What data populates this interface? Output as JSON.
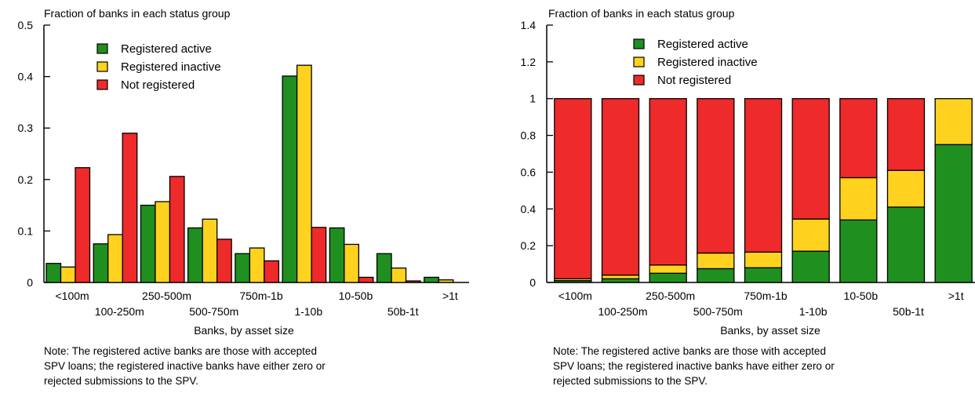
{
  "chart_data": [
    {
      "type": "bar",
      "subtype": "grouped",
      "title": "Fraction of banks in each status group",
      "xlabel": "Banks, by asset size",
      "ylabel": "",
      "ylim": [
        0,
        0.5
      ],
      "yticks": [
        "0",
        "0.1",
        "0.2",
        "0.3",
        "0.4",
        "0.5"
      ],
      "yticks_values": [
        0,
        0.1,
        0.2,
        0.3,
        0.4,
        0.5
      ],
      "categories": [
        "<100m",
        "100-250m",
        "250-500m",
        "500-750m",
        "750m-1b",
        "1-10b",
        "10-50b",
        "50b-1t",
        ">1t"
      ],
      "legend_placement": "top-left",
      "series": [
        {
          "name": "Registered active",
          "color": "#1f8f1f",
          "values": [
            0.037,
            0.075,
            0.15,
            0.106,
            0.056,
            0.401,
            0.106,
            0.056,
            0.01
          ]
        },
        {
          "name": "Registered inactive",
          "color": "#ffd21f",
          "values": [
            0.03,
            0.093,
            0.157,
            0.123,
            0.067,
            0.422,
            0.074,
            0.028,
            0.005
          ]
        },
        {
          "name": "Not registered",
          "color": "#ee2a2a",
          "values": [
            0.223,
            0.29,
            0.206,
            0.084,
            0.042,
            0.107,
            0.01,
            0.003,
            0.0
          ]
        }
      ],
      "note": "Note: The registered active banks are those with accepted\nSPV loans; the registered inactive banks have either zero or\nrejected submissions to the SPV."
    },
    {
      "type": "bar",
      "subtype": "stacked",
      "title": "Fraction of banks in each status group",
      "xlabel": "Banks, by asset size",
      "ylabel": "",
      "ylim": [
        0,
        1.4
      ],
      "yticks": [
        "0",
        "0.2",
        "0.4",
        "0.6",
        "0.8",
        "1",
        "1.2",
        "1.4"
      ],
      "yticks_values": [
        0,
        0.2,
        0.4,
        0.6,
        0.8,
        1.0,
        1.2,
        1.4
      ],
      "categories": [
        "<100m",
        "100-250m",
        "250-500m",
        "500-750m",
        "750m-1b",
        "1-10b",
        "10-50b",
        "50b-1t",
        ">1t"
      ],
      "legend_placement": "top-center",
      "series": [
        {
          "name": "Registered active",
          "color": "#1f8f1f",
          "values": [
            0.01,
            0.02,
            0.05,
            0.075,
            0.08,
            0.17,
            0.34,
            0.41,
            0.75
          ]
        },
        {
          "name": "Registered inactive",
          "color": "#ffd21f",
          "values": [
            0.01,
            0.02,
            0.045,
            0.085,
            0.085,
            0.175,
            0.23,
            0.2,
            0.25
          ]
        },
        {
          "name": "Not registered",
          "color": "#ee2a2a",
          "values": [
            0.98,
            0.96,
            0.905,
            0.84,
            0.835,
            0.655,
            0.43,
            0.39,
            0.0
          ]
        }
      ],
      "note": "Note: The registered active banks are those with accepted\nSPV loans; the registered inactive banks have either zero or\nrejected submissions to the SPV."
    }
  ]
}
